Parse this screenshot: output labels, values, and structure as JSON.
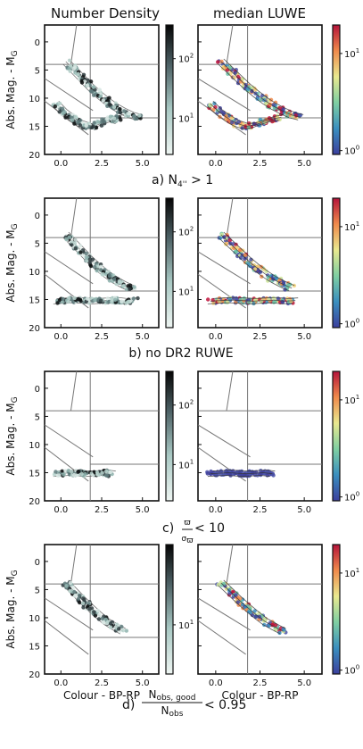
{
  "column_titles": [
    "Number Density",
    "median LUWE"
  ],
  "ylabel": "Abs. Mag. - M",
  "ylabel_sub": "G",
  "xlabel": "Colour - BP-RP",
  "chart_data": {
    "type": "scatter",
    "xlim": [
      -1,
      6
    ],
    "ylim": [
      20,
      -3
    ],
    "x_ticks": [
      "0.0",
      "2.5",
      "5.0"
    ],
    "y_ticks": [
      "0",
      "5",
      "10",
      "15",
      "20"
    ],
    "reference_lines": {
      "horizontal": [
        4,
        13.5
      ],
      "vertical": [
        1.8
      ]
    },
    "colorbars": {
      "density": {
        "scale": "log",
        "ticks": [
          "10",
          "10"
        ],
        "tick_exponents": [
          "1",
          "2"
        ],
        "colors": [
          "#e8f1ee",
          "#0a0a0a"
        ]
      },
      "luwe": {
        "scale": "log",
        "ticks": [
          "10",
          "10"
        ],
        "tick_exponents": [
          "0",
          "1"
        ],
        "colors": [
          "#3b4cc0",
          "#3a9fb5",
          "#8fd19e",
          "#f0e68c",
          "#f08a4b",
          "#c0143c"
        ]
      }
    },
    "panels": [
      {
        "label": "a)",
        "caption": "N",
        "caption_sub": "4''",
        "caption_tail": " > 1",
        "density_ticks": [
          {
            "base": "10",
            "exp": "2"
          },
          {
            "base": "10",
            "exp": "1"
          }
        ],
        "sequences": [
          {
            "name": "main",
            "x": [
              0.3,
              0.8,
              1.3,
              1.8,
              2.3,
              2.8,
              3.3,
              3.8,
              4.3,
              4.8
            ],
            "y": [
              3.5,
              5.0,
              6.5,
              8.0,
              9.3,
              10.5,
              11.5,
              12.3,
              13.0,
              13.4
            ]
          },
          {
            "name": "lower",
            "x": [
              -0.3,
              0.2,
              0.7,
              1.2,
              1.7,
              2.2,
              2.7,
              3.2,
              3.7
            ],
            "y": [
              11.0,
              12.5,
              13.6,
              14.5,
              15.0,
              14.8,
              14.2,
              13.7,
              13.4
            ]
          }
        ]
      },
      {
        "label": "b)",
        "caption": "no DR2 RUWE",
        "density_ticks": [
          {
            "base": "10",
            "exp": "2"
          },
          {
            "base": "10",
            "exp": "1"
          }
        ],
        "sequences": [
          {
            "name": "main",
            "x": [
              0.3,
              0.8,
              1.3,
              1.8,
              2.3,
              2.8,
              3.3,
              3.8,
              4.3
            ],
            "y": [
              3.5,
              5.0,
              6.5,
              8.0,
              9.3,
              10.5,
              11.5,
              12.3,
              13.0
            ]
          },
          {
            "name": "band",
            "x": [
              -0.3,
              0.3,
              0.9,
              1.5,
              2.1,
              2.7,
              3.3,
              3.9,
              4.5
            ],
            "y": [
              15.3,
              15.2,
              15.1,
              15.2,
              15.3,
              15.2,
              15.1,
              15.3,
              15.2
            ]
          }
        ]
      },
      {
        "label": "c)",
        "caption": "ϖ",
        "caption_frac_num": "ϖ",
        "caption_frac_den": "σ",
        "caption_frac_den_sub": "ϖ",
        "caption_tail": " < 10",
        "density_ticks": [
          {
            "base": "10",
            "exp": "2"
          },
          {
            "base": "10",
            "exp": "1"
          }
        ],
        "sequences": [
          {
            "name": "band",
            "x": [
              -0.3,
              0.2,
              0.7,
              1.2,
              1.7,
              2.2,
              2.7,
              3.2
            ],
            "y": [
              15.2,
              15.1,
              15.0,
              15.1,
              15.2,
              15.1,
              15.0,
              15.2
            ]
          }
        ]
      },
      {
        "label": "d)",
        "caption_frac_num": "N",
        "caption_frac_num_sub": "obs, good",
        "caption_frac_den": "N",
        "caption_frac_den_sub": "obs",
        "caption_tail": " < 0.95",
        "density_ticks": [
          {
            "base": "10",
            "exp": "1"
          }
        ],
        "sequences": [
          {
            "name": "main",
            "x": [
              0.3,
              0.8,
              1.3,
              1.8,
              2.3,
              2.8,
              3.3,
              3.8
            ],
            "y": [
              3.8,
              5.3,
              6.8,
              8.2,
              9.5,
              10.7,
              11.6,
              12.4
            ]
          }
        ]
      }
    ]
  }
}
